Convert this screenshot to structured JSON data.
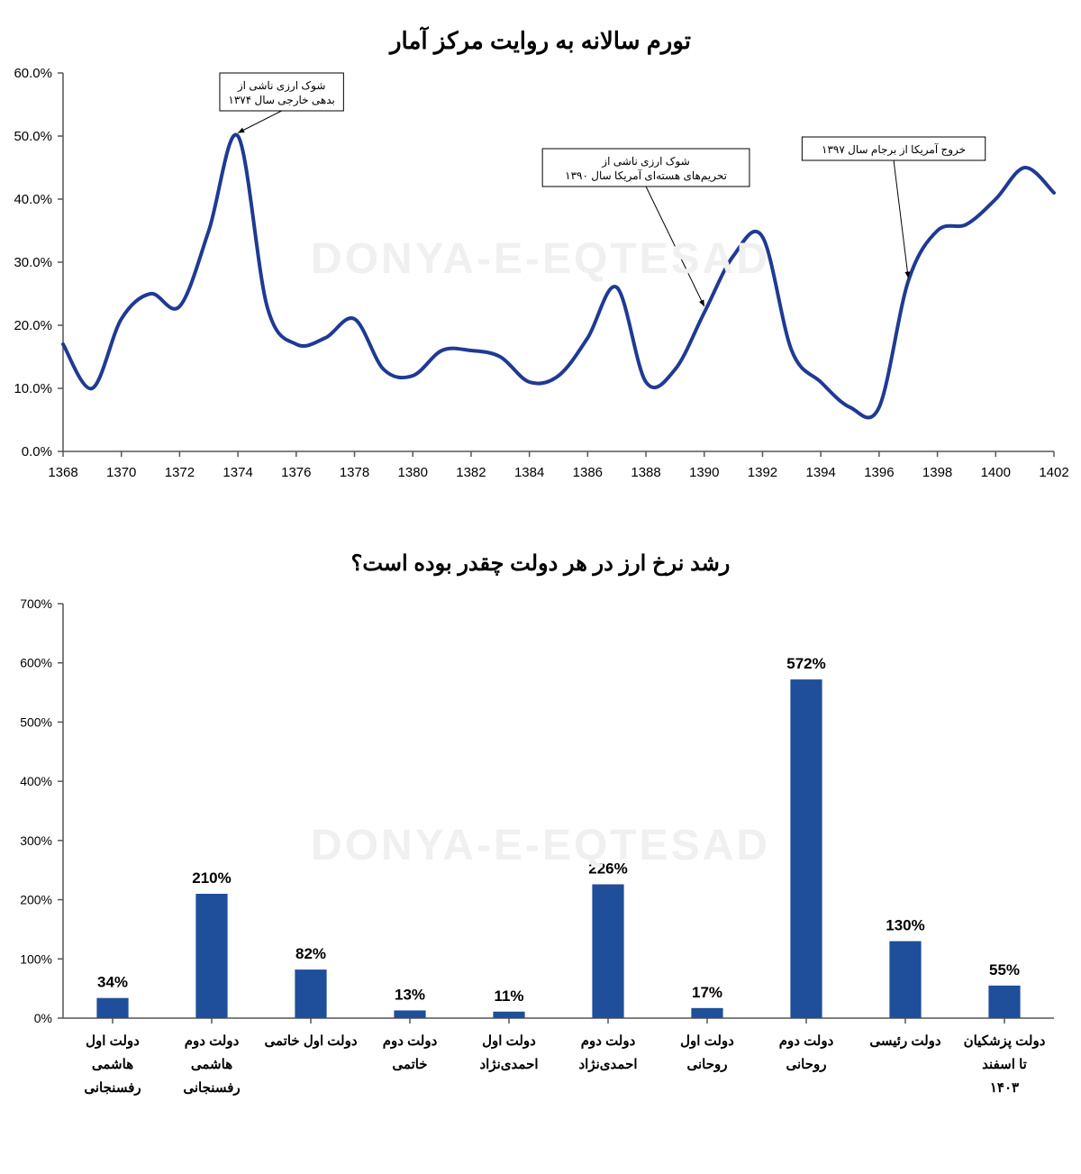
{
  "watermark_text": "DONYA-E-EQTESAD",
  "watermark_color": "#f0f0f0",
  "line_chart": {
    "type": "line",
    "title": "تورم سالانه به روایت مرکز آمار",
    "title_fontsize": 26,
    "title_color": "#000000",
    "line_color": "#1f3a93",
    "line_width": 4,
    "background_color": "#ffffff",
    "axis_color": "#555555",
    "axis_fontsize": 15,
    "ylim": [
      0,
      60
    ],
    "ytick_step": 10,
    "y_suffix": ".0%",
    "xlim": [
      1368,
      1402
    ],
    "xtick_step": 2,
    "x_labels": [
      "1368",
      "1370",
      "1372",
      "1374",
      "1376",
      "1378",
      "1380",
      "1382",
      "1384",
      "1386",
      "1388",
      "1390",
      "1392",
      "1394",
      "1396",
      "1398",
      "1400",
      "1402"
    ],
    "series": [
      {
        "x": 1368,
        "y": 17
      },
      {
        "x": 1369,
        "y": 10
      },
      {
        "x": 1370,
        "y": 21
      },
      {
        "x": 1371,
        "y": 25
      },
      {
        "x": 1372,
        "y": 23
      },
      {
        "x": 1373,
        "y": 35
      },
      {
        "x": 1374,
        "y": 50
      },
      {
        "x": 1375,
        "y": 23
      },
      {
        "x": 1376,
        "y": 17
      },
      {
        "x": 1377,
        "y": 18
      },
      {
        "x": 1378,
        "y": 21
      },
      {
        "x": 1379,
        "y": 13
      },
      {
        "x": 1380,
        "y": 12
      },
      {
        "x": 1381,
        "y": 16
      },
      {
        "x": 1382,
        "y": 16
      },
      {
        "x": 1383,
        "y": 15
      },
      {
        "x": 1384,
        "y": 11
      },
      {
        "x": 1385,
        "y": 12
      },
      {
        "x": 1386,
        "y": 18
      },
      {
        "x": 1387,
        "y": 26
      },
      {
        "x": 1388,
        "y": 11
      },
      {
        "x": 1389,
        "y": 13
      },
      {
        "x": 1390,
        "y": 22
      },
      {
        "x": 1391,
        "y": 31
      },
      {
        "x": 1392,
        "y": 34
      },
      {
        "x": 1393,
        "y": 16
      },
      {
        "x": 1394,
        "y": 11
      },
      {
        "x": 1395,
        "y": 7
      },
      {
        "x": 1396,
        "y": 7
      },
      {
        "x": 1397,
        "y": 27
      },
      {
        "x": 1398,
        "y": 35
      },
      {
        "x": 1399,
        "y": 36
      },
      {
        "x": 1400,
        "y": 40
      },
      {
        "x": 1401,
        "y": 45
      },
      {
        "x": 1402,
        "y": 41
      }
    ],
    "annotations": [
      {
        "text": "شوک ارزی ناشی از\nبدهی خارجی سال ۱۳۷۴",
        "box_x": 1375.5,
        "box_y": 57,
        "arrow_to_x": 1374,
        "arrow_to_y": 50.5,
        "fontsize": 12
      },
      {
        "text": "شوک ارزی ناشی از\nتحریم‌های هسته‌ای آمریکا سال ۱۳۹۰",
        "box_x": 1388,
        "box_y": 45,
        "arrow_to_x": 1390,
        "arrow_to_y": 23,
        "fontsize": 12
      },
      {
        "text": "خروج آمریکا از برجام سال ۱۳۹۷",
        "box_x": 1396.5,
        "box_y": 48,
        "arrow_to_x": 1397,
        "arrow_to_y": 27.5,
        "fontsize": 12
      }
    ]
  },
  "bar_chart": {
    "type": "bar",
    "title": "رشد نرخ ارز در هر دولت چقدر بوده است؟",
    "title_fontsize": 24,
    "title_color": "#000000",
    "bar_color": "#1f4e9a",
    "background_color": "#ffffff",
    "axis_color": "#555555",
    "axis_fontsize": 14,
    "label_fontsize": 15,
    "value_fontsize": 17,
    "ylim": [
      0,
      700
    ],
    "ytick_step": 100,
    "y_suffix": "%",
    "bar_width": 0.32,
    "categories": [
      "دولت اول\nهاشمی\nرفسنجانی",
      "دولت دوم\nهاشمی\nرفسنجانی",
      "دولت اول خاتمی",
      "دولت دوم\nخاتمی",
      "دولت اول\nاحمدی‌نژاد",
      "دولت دوم\nاحمدی‌نژاد",
      "دولت اول\nروحانی",
      "دولت دوم\nروحانی",
      "دولت رئیسی",
      "دولت پزشکیان\nتا اسفند\n۱۴۰۳"
    ],
    "values": [
      34,
      210,
      82,
      13,
      11,
      226,
      17,
      572,
      130,
      55
    ],
    "value_suffix": "%"
  }
}
